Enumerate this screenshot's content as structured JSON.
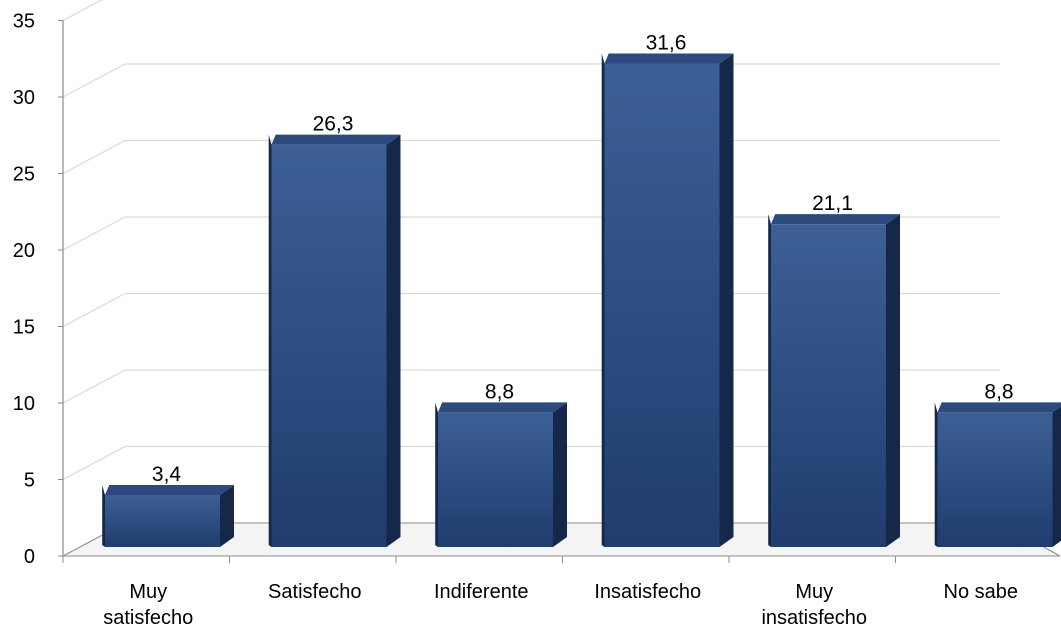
{
  "chart_data": {
    "type": "bar",
    "categories": [
      [
        "Muy",
        "satisfecho"
      ],
      [
        "Satisfecho"
      ],
      [
        "Indiferente"
      ],
      [
        "Insatisfecho"
      ],
      [
        "Muy",
        "insatisfecho"
      ],
      [
        "No sabe"
      ]
    ],
    "values": [
      3.4,
      26.3,
      8.8,
      31.6,
      21.1,
      8.8
    ],
    "value_labels": [
      "3,4",
      "26,3",
      "8,8",
      "31,6",
      "21,1",
      "8,8"
    ],
    "y_ticks": [
      "0",
      "5",
      "10",
      "15",
      "20",
      "25",
      "30",
      "35"
    ],
    "ylim": [
      0,
      35
    ],
    "grid": true,
    "three_d": true,
    "colors": {
      "bar_front_top": "#3c5f95",
      "bar_front_bottom": "#1f3d6e",
      "bar_side": "#15284a",
      "bar_top": "#2c4a7e",
      "gridline": "#d9d9d9",
      "axis": "#8c8c8c",
      "text": "#000000"
    }
  }
}
